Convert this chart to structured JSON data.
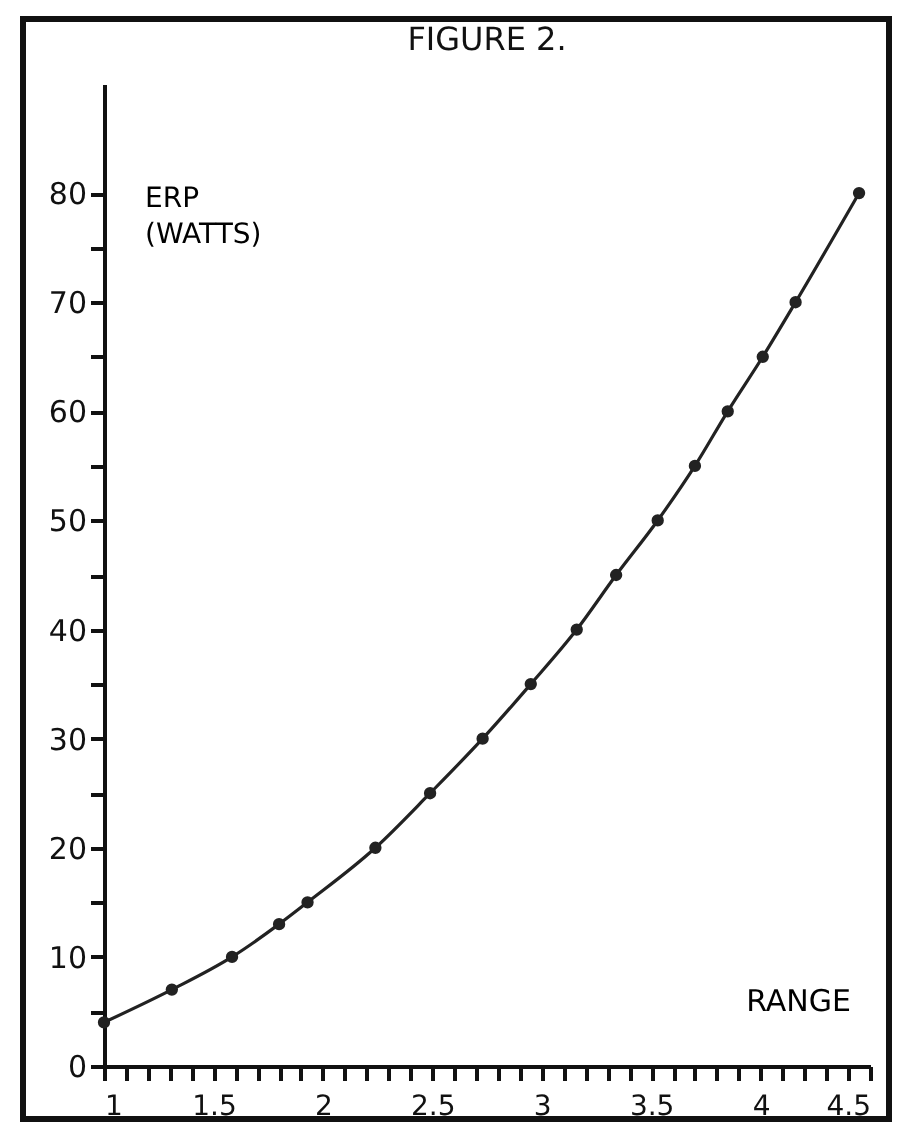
{
  "chart_data": {
    "type": "line",
    "title": "FIGURE 2.",
    "xlabel": "RANGE",
    "ylabel": "ERP (WATTS)",
    "x": [
      1,
      1.31,
      1.585,
      1.8,
      1.93,
      2.24,
      2.49,
      2.73,
      2.95,
      3.16,
      3.34,
      3.53,
      3.7,
      3.85,
      4.01,
      4.16,
      4.45
    ],
    "series": [
      {
        "color": "#222222",
        "values": [
          4,
          7,
          10,
          13,
          15,
          20,
          25,
          30,
          35,
          40,
          45,
          50,
          55,
          60,
          65,
          70,
          80
        ]
      }
    ],
    "xlim": [
      1,
      4.5
    ],
    "ylim": [
      0,
      90
    ],
    "xticks": [
      1,
      {
        "value": 1.1,
        "label": null
      },
      {
        "value": 1.2,
        "label": null
      },
      {
        "value": 1.3,
        "label": null
      },
      {
        "value": 1.4,
        "label": null
      },
      1.5,
      {
        "value": 1.6,
        "label": null
      },
      {
        "value": 1.7,
        "label": null
      },
      {
        "value": 1.8,
        "label": null
      },
      {
        "value": 1.9,
        "label": null
      },
      2,
      {
        "value": 2.1,
        "label": null
      },
      {
        "value": 2.2,
        "label": null
      },
      {
        "value": 2.3,
        "label": null
      },
      {
        "value": 2.4,
        "label": null
      },
      2.5,
      {
        "value": 2.6,
        "label": null
      },
      {
        "value": 2.7,
        "label": null
      },
      {
        "value": 2.8,
        "label": null
      },
      {
        "value": 2.9,
        "label": null
      },
      3,
      {
        "value": 3.1,
        "label": null
      },
      {
        "value": 3.2,
        "label": null
      },
      {
        "value": 3.3,
        "label": null
      },
      {
        "value": 3.4,
        "label": null
      },
      3.5,
      {
        "value": 3.6,
        "label": null
      },
      {
        "value": 3.7,
        "label": null
      },
      {
        "value": 3.8,
        "label": null
      },
      {
        "value": 3.9,
        "label": null
      },
      4,
      {
        "value": 4.1,
        "label": null
      },
      {
        "value": 4.2,
        "label": null
      },
      {
        "value": 4.3,
        "label": null
      },
      {
        "value": 4.4,
        "label": null
      },
      4.5
    ],
    "yticks": [
      0,
      {
        "value": 5,
        "label": null
      },
      10,
      {
        "value": 15,
        "label": null
      },
      20,
      {
        "value": 25,
        "label": null
      },
      30,
      {
        "value": 35,
        "label": null
      },
      40,
      {
        "value": 45,
        "label": null
      },
      50,
      {
        "value": 55,
        "label": null
      },
      60,
      {
        "value": 65,
        "label": null
      },
      70,
      {
        "value": 75,
        "label": null
      },
      80
    ],
    "grid": false,
    "marker": "circle",
    "line_style": "solid"
  }
}
